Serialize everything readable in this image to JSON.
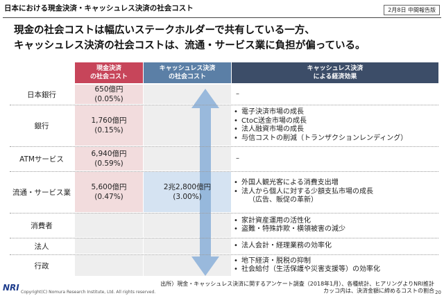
{
  "slide_title": "日本における現金決済・キャッシュレス決済の社会コスト",
  "date_note": "2月8日 中間報告版",
  "headline": [
    "現金の社会コストは幅広いステークホルダーで共有している一方、",
    "キャッシュレス決済の社会コストは、流通・サービス業に負担が偏っている。"
  ],
  "table": {
    "headers": {
      "cash": [
        "現金決済",
        "の社会コスト"
      ],
      "cashless": [
        "キャッシュレス決済",
        "の社会コスト"
      ],
      "effects": [
        "キャッシュレス決済",
        "による経済効果"
      ]
    },
    "rows": [
      {
        "label": "日本銀行",
        "cash_amount": "650億円",
        "cash_ratio": "(0.05%)",
        "effects": [],
        "effect_dash": "–"
      },
      {
        "label": "銀行",
        "cash_amount": "1,760億円",
        "cash_ratio": "(0.15%)",
        "effects": [
          "電子決済市場の成長",
          "CtoC送金市場の成長",
          "法人融資市場の成長",
          "与信コストの削減（トランザクションレンディング）"
        ]
      },
      {
        "label": "ATMサービス",
        "cash_amount": "6,940億円",
        "cash_ratio": "(0.59%)",
        "effects": [],
        "effect_dash": "–"
      },
      {
        "label": "流通・サービス業",
        "cash_amount": "5,600億円",
        "cash_ratio": "(0.47%)",
        "cashless_amount": "2兆2,800億円",
        "cashless_ratio": "(3.00%)",
        "effects": [
          "外国人観光客による消費支出増",
          "法人から個人に対する少額支払市場の成長"
        ],
        "effect_sub": "（広告、販促の革新）"
      },
      {
        "label": "消費者",
        "effects": [
          "家計資産運用の活性化",
          "盗難・特殊詐欺・横領被害の減少"
        ]
      },
      {
        "label": "法人",
        "effects": [
          "法人会計・経理業務の効率化"
        ]
      },
      {
        "label": "行政",
        "effects": [
          "地下経済・脱税の抑制",
          "社会給付（生活保護や災害支援等）の効率化"
        ]
      }
    ],
    "bullet": "•"
  },
  "source": [
    "出所）現金・キャッシュレス決済に関するアンケート調査（2018年1月）、各種統計、ヒアリングよりNRI推計",
    "カッコ内は、決済金額に締めるコストの割合"
  ],
  "logo": "NRI",
  "copyright": "Copyright(C) Nomura Research Institute, Ltd. All rights reserved.",
  "page_number": "20",
  "colors": {
    "cash_header": "#c7455a",
    "cashless_header": "#5b7fa6",
    "effects_header": "#3c4d68",
    "cash_cell": "#f2dcdd",
    "highlight_cell": "#d5e3f2",
    "arrow": "#8fb3d9"
  },
  "icons": {
    "arrow": "double-headed-vertical-arrow-icon"
  }
}
